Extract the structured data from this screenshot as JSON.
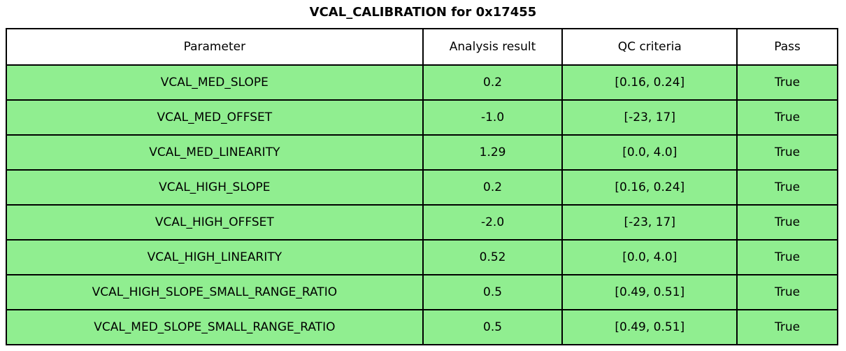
{
  "title": "VCAL_CALIBRATION for 0x17455",
  "chart_data": {
    "type": "table",
    "title": "VCAL_CALIBRATION for 0x17455",
    "columns": [
      "Parameter",
      "Analysis result",
      "QC criteria",
      "Pass"
    ],
    "rows": [
      {
        "parameter": "VCAL_MED_SLOPE",
        "result": "0.2",
        "criteria": "[0.16, 0.24]",
        "pass": "True"
      },
      {
        "parameter": "VCAL_MED_OFFSET",
        "result": "-1.0",
        "criteria": "[-23, 17]",
        "pass": "True"
      },
      {
        "parameter": "VCAL_MED_LINEARITY",
        "result": "1.29",
        "criteria": "[0.0, 4.0]",
        "pass": "True"
      },
      {
        "parameter": "VCAL_HIGH_SLOPE",
        "result": "0.2",
        "criteria": "[0.16, 0.24]",
        "pass": "True"
      },
      {
        "parameter": "VCAL_HIGH_OFFSET",
        "result": "-2.0",
        "criteria": "[-23, 17]",
        "pass": "True"
      },
      {
        "parameter": "VCAL_HIGH_LINEARITY",
        "result": "0.52",
        "criteria": "[0.0, 4.0]",
        "pass": "True"
      },
      {
        "parameter": "VCAL_HIGH_SLOPE_SMALL_RANGE_RATIO",
        "result": "0.5",
        "criteria": "[0.49, 0.51]",
        "pass": "True"
      },
      {
        "parameter": "VCAL_MED_SLOPE_SMALL_RANGE_RATIO",
        "result": "0.5",
        "criteria": "[0.49, 0.51]",
        "pass": "True"
      }
    ],
    "colors": {
      "row_background": "#90EE90",
      "header_background": "#ffffff",
      "border": "#000000",
      "text": "#000000"
    },
    "layout": {
      "grid": true,
      "all_rows_pass": true
    }
  }
}
